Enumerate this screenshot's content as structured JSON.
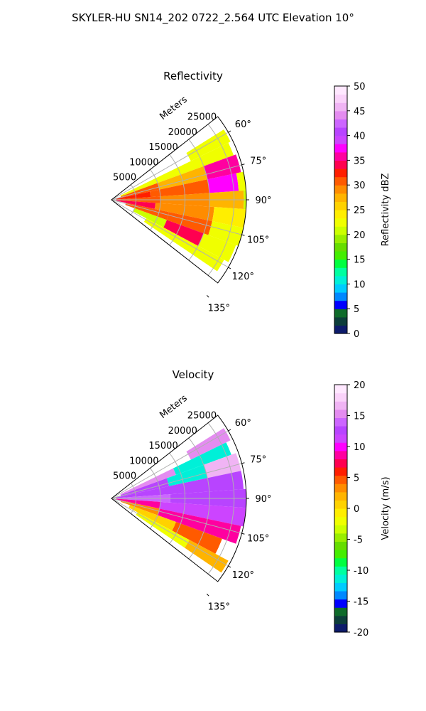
{
  "figure": {
    "title": "SKYLER-HU  SN14_202  0722_2.564 UTC Elevation 10°"
  },
  "chart_data": [
    {
      "type": "heatmap",
      "projection": "polar-sector",
      "title": "Reflectivity",
      "radial_label": "Meters",
      "radial_ticks": [
        5000,
        10000,
        15000,
        20000,
        25000
      ],
      "rlim": [
        0,
        27500
      ],
      "azimuth_ticks_deg": [
        60,
        75,
        90,
        105,
        120,
        135
      ],
      "azimuth_tick_labels": [
        "60°",
        "75°",
        "90°",
        "105°",
        "120°",
        "135°"
      ],
      "azimuth_range_deg": [
        52,
        128
      ],
      "colorbar": {
        "label": "Reflectivity dBZ",
        "range": [
          0,
          50
        ],
        "ticks": [
          0,
          5,
          10,
          15,
          20,
          25,
          30,
          35,
          40,
          45,
          50
        ],
        "colors": [
          "#0d1b6b",
          "#0c3d3a",
          "#0e6b2a",
          "#0000ff",
          "#0088ff",
          "#00ccff",
          "#00f0d8",
          "#00ffa0",
          "#00ff40",
          "#44ee00",
          "#66dd00",
          "#99ee00",
          "#ccff00",
          "#f0ff00",
          "#ffee00",
          "#ffd200",
          "#ffb400",
          "#ff8c00",
          "#ff5a00",
          "#ff1e00",
          "#ff0050",
          "#ff00a0",
          "#ff00ff",
          "#cc44ff",
          "#b844ff",
          "#cc66ff",
          "#e48cf0",
          "#f0b4f4",
          "#fad2fa",
          "#ffe8ff"
        ]
      },
      "cells": [
        {
          "az": [
            58,
            64
          ],
          "r": [
            18000,
            27000
          ],
          "value": 22
        },
        {
          "az": [
            64,
            70
          ],
          "r": [
            2000,
            26500
          ],
          "value": 23
        },
        {
          "az": [
            70,
            78
          ],
          "r": [
            2000,
            10000
          ],
          "value": 30
        },
        {
          "az": [
            70,
            78
          ],
          "r": [
            10000,
            20000
          ],
          "value": 28
        },
        {
          "az": [
            70,
            78
          ],
          "r": [
            20000,
            27000
          ],
          "value": 36
        },
        {
          "az": [
            78,
            86
          ],
          "r": [
            1000,
            8000
          ],
          "value": 33
        },
        {
          "az": [
            78,
            86
          ],
          "r": [
            8000,
            20000
          ],
          "value": 30
        },
        {
          "az": [
            78,
            86
          ],
          "r": [
            20000,
            26000
          ],
          "value": 37
        },
        {
          "az": [
            78,
            86
          ],
          "r": [
            26000,
            29000
          ],
          "value": 22
        },
        {
          "az": [
            86,
            94
          ],
          "r": [
            1000,
            10000
          ],
          "value": 31
        },
        {
          "az": [
            86,
            94
          ],
          "r": [
            10000,
            20000
          ],
          "value": 29
        },
        {
          "az": [
            86,
            94
          ],
          "r": [
            20000,
            27000
          ],
          "value": 27
        },
        {
          "az": [
            86,
            94
          ],
          "r": [
            27000,
            29500
          ],
          "value": 21
        },
        {
          "az": [
            94,
            102
          ],
          "r": [
            1000,
            9000
          ],
          "value": 34
        },
        {
          "az": [
            94,
            102
          ],
          "r": [
            9000,
            21000
          ],
          "value": 29
        },
        {
          "az": [
            94,
            102
          ],
          "r": [
            21000,
            28500
          ],
          "value": 24
        },
        {
          "az": [
            102,
            110
          ],
          "r": [
            3000,
            12000
          ],
          "value": 31
        },
        {
          "az": [
            102,
            110
          ],
          "r": [
            12000,
            21000
          ],
          "value": 30
        },
        {
          "az": [
            102,
            110
          ],
          "r": [
            21000,
            27500
          ],
          "value": 23
        },
        {
          "az": [
            110,
            118
          ],
          "r": [
            5000,
            12000
          ],
          "value": 20
        },
        {
          "az": [
            110,
            118
          ],
          "r": [
            12000,
            20000
          ],
          "value": 34
        },
        {
          "az": [
            110,
            118
          ],
          "r": [
            20000,
            27000
          ],
          "value": 22
        },
        {
          "az": [
            118,
            124
          ],
          "r": [
            8000,
            26000
          ],
          "value": 22
        }
      ]
    },
    {
      "type": "heatmap",
      "projection": "polar-sector",
      "title": "Velocity",
      "radial_label": "Meters",
      "radial_ticks": [
        5000,
        10000,
        15000,
        20000,
        25000
      ],
      "rlim": [
        0,
        27500
      ],
      "azimuth_ticks_deg": [
        60,
        75,
        90,
        105,
        120,
        135
      ],
      "azimuth_tick_labels": [
        "60°",
        "75°",
        "90°",
        "105°",
        "120°",
        "135°"
      ],
      "azimuth_range_deg": [
        52,
        128
      ],
      "colorbar": {
        "label": "Velocity (m/s)",
        "range": [
          -20,
          20
        ],
        "ticks": [
          -20,
          -15,
          -10,
          -5,
          0,
          5,
          10,
          15,
          20
        ],
        "colors": [
          "#0d1b6b",
          "#0c3d3a",
          "#0e6b2a",
          "#0000ff",
          "#0088ff",
          "#00ccff",
          "#00f0d8",
          "#00ffa0",
          "#00ff40",
          "#44ee00",
          "#66dd00",
          "#99ee00",
          "#ccff00",
          "#f0ff00",
          "#ffee00",
          "#ffd200",
          "#ffb400",
          "#ff8c00",
          "#ff5a00",
          "#ff1e00",
          "#ff0050",
          "#ff00a0",
          "#ff00ff",
          "#cc44ff",
          "#b844ff",
          "#cc66ff",
          "#e48cf0",
          "#f0b4f4",
          "#fad2fa",
          "#ffe8ff"
        ]
      },
      "cells": [
        {
          "az": [
            58,
            64
          ],
          "r": [
            18000,
            27000
          ],
          "value": 15
        },
        {
          "az": [
            64,
            70
          ],
          "r": [
            2000,
            14000
          ],
          "value": 15
        },
        {
          "az": [
            64,
            70
          ],
          "r": [
            14000,
            26000
          ],
          "value": -12
        },
        {
          "az": [
            70,
            78
          ],
          "r": [
            2000,
            12000
          ],
          "value": 13
        },
        {
          "az": [
            70,
            78
          ],
          "r": [
            12000,
            20000
          ],
          "value": -12
        },
        {
          "az": [
            70,
            78
          ],
          "r": [
            20000,
            27000
          ],
          "value": 16
        },
        {
          "az": [
            78,
            86
          ],
          "r": [
            1000,
            27000
          ],
          "value": 13
        },
        {
          "az": [
            86,
            94
          ],
          "r": [
            1000,
            12000
          ],
          "value": 14
        },
        {
          "az": [
            86,
            94
          ],
          "r": [
            12000,
            28000
          ],
          "value": 13
        },
        {
          "az": [
            94,
            102
          ],
          "r": [
            1000,
            10000
          ],
          "value": 8
        },
        {
          "az": [
            94,
            102
          ],
          "r": [
            10000,
            28000
          ],
          "value": 11
        },
        {
          "az": [
            102,
            110
          ],
          "r": [
            2000,
            10000
          ],
          "value": 3
        },
        {
          "az": [
            102,
            110
          ],
          "r": [
            10000,
            20000
          ],
          "value": 8
        },
        {
          "az": [
            102,
            110
          ],
          "r": [
            20000,
            27000
          ],
          "value": 9
        },
        {
          "az": [
            110,
            118
          ],
          "r": [
            4000,
            14000
          ],
          "value": 1
        },
        {
          "az": [
            110,
            118
          ],
          "r": [
            14000,
            24000
          ],
          "value": 4
        },
        {
          "az": [
            118,
            124
          ],
          "r": [
            6000,
            18000
          ],
          "value": -2
        },
        {
          "az": [
            118,
            124
          ],
          "r": [
            18000,
            27000
          ],
          "value": 2
        }
      ]
    }
  ]
}
